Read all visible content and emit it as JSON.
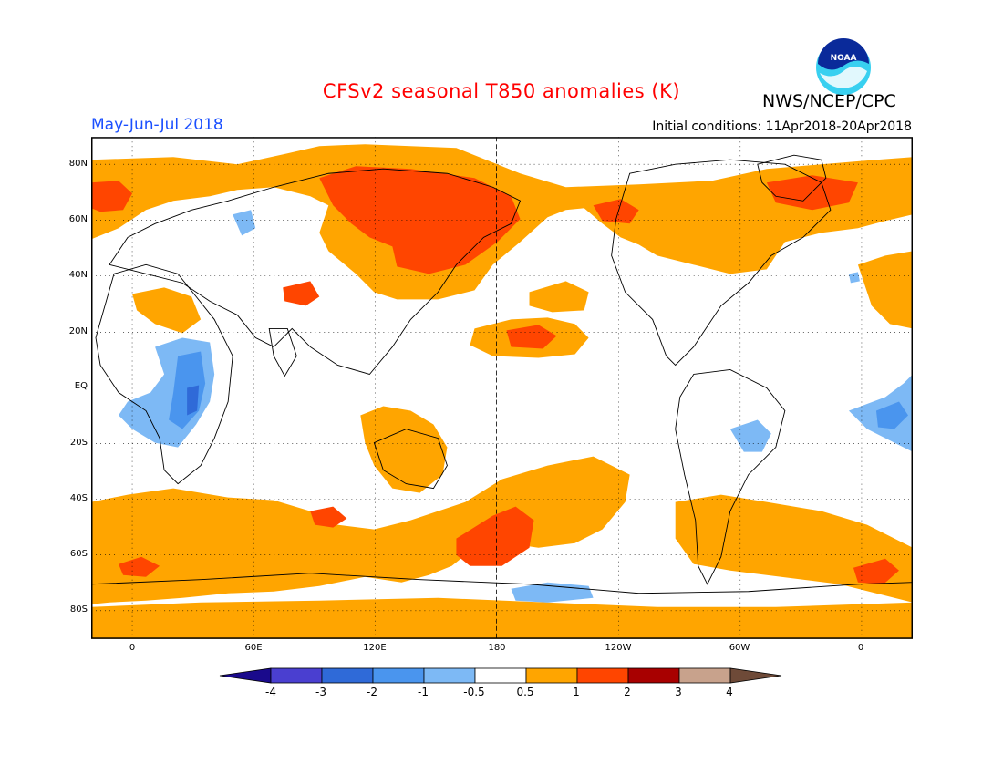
{
  "title": "CFSv2 seasonal T850 anomalies (K)",
  "agency": "NWS/NCEP/CPC",
  "logo_text": "NOAA",
  "period": "May-Jun-Jul 2018",
  "initial_conditions": "Initial conditions: 11Apr2018-20Apr2018",
  "lat_labels": [
    "80N",
    "60N",
    "40N",
    "20N",
    "EQ",
    "20S",
    "40S",
    "60S",
    "80S"
  ],
  "lon_labels": [
    "0",
    "60E",
    "120E",
    "180",
    "120W",
    "60W",
    "0"
  ],
  "colorbar": {
    "labels": [
      "-4",
      "-3",
      "-2",
      "-1",
      "-0.5",
      "0.5",
      "1",
      "2",
      "3",
      "4"
    ],
    "colors": [
      "#1a0a8c",
      "#4a3fd0",
      "#2f6ad8",
      "#4a95ee",
      "#7db9f5",
      "#ffffff",
      "#ffa500",
      "#ff4500",
      "#a80000",
      "#c8a28c",
      "#6e4a38"
    ]
  },
  "map": {
    "projection": "cylindrical equidistant, centered on 180",
    "grid": "dotted every 30 deg",
    "region_fills": {
      "warm_0_5_to_1": "#ffa500",
      "warm_1_to_2": "#ff4500",
      "cool_minus1_to_minus0_5": "#7db9f5",
      "cool_minus2_to_minus1": "#4a95ee",
      "cool_minus3_to_minus2": "#2f6ad8"
    }
  }
}
